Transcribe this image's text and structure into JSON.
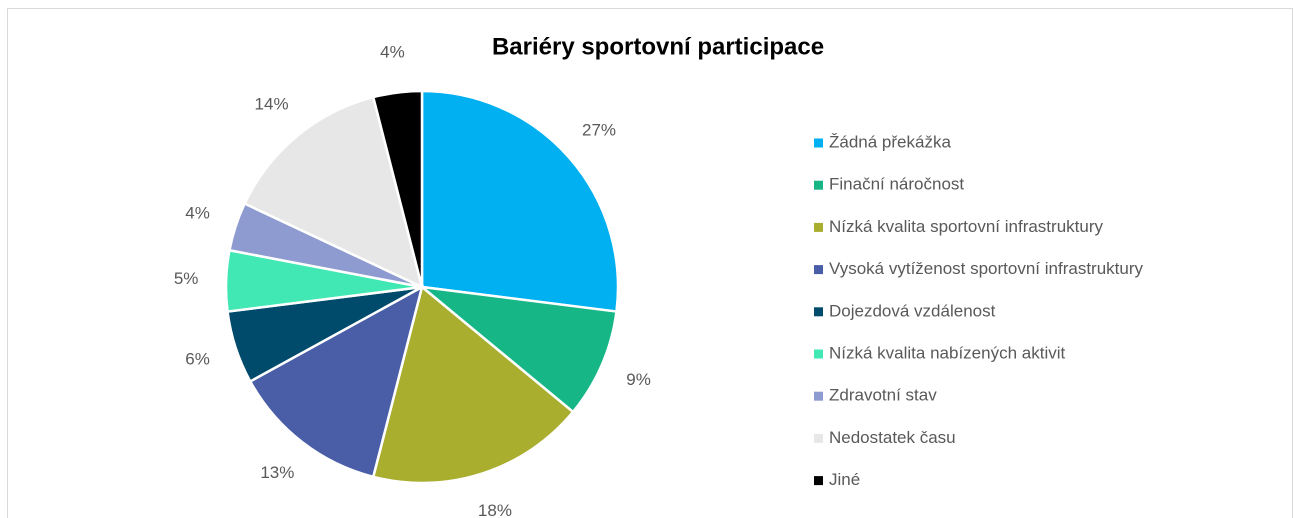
{
  "chart_data": {
    "type": "pie",
    "title": "Bariéry sportovní participace",
    "categories": [
      "Žádná překážka",
      "Finační náročnost",
      "Nízká kvalita sportovní infrastruktury",
      "Vysoká vytíženost sportovní infrastruktury",
      "Dojezdová vzdálenost",
      "Nízká kvalita nabízených aktivit",
      "Zdravotní stav",
      "Nedostatek času",
      "Jiné"
    ],
    "values": [
      27,
      9,
      18,
      13,
      6,
      5,
      4,
      14,
      4
    ],
    "value_labels": [
      "27%",
      "9%",
      "18%",
      "13%",
      "6%",
      "5%",
      "4%",
      "14%",
      "4%"
    ],
    "colors": [
      "#00b0f0",
      "#17b686",
      "#a9ae2e",
      "#4a5ea8",
      "#004a6b",
      "#41e8b4",
      "#8e9bd0",
      "#e7e7e7",
      "#000000"
    ],
    "legend": "right"
  }
}
